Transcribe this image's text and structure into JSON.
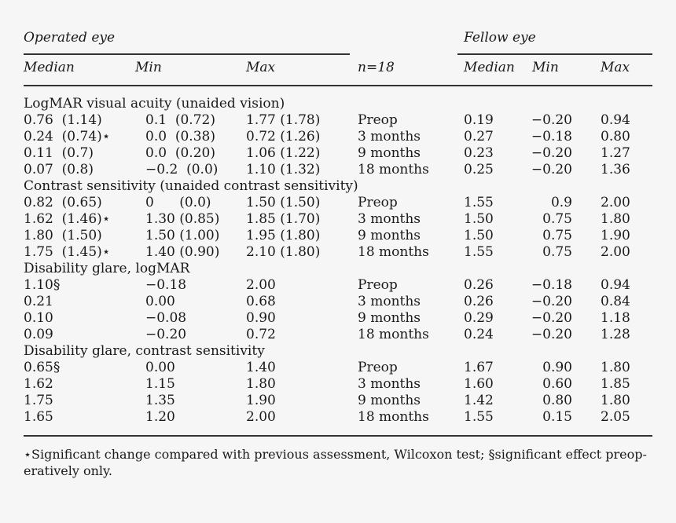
{
  "header": {
    "operated_eye": "Operated eye",
    "fellow_eye": "Fellow eye",
    "median": "Median",
    "min": "Min",
    "max": "Max",
    "n": "n=18"
  },
  "sections": [
    {
      "title": "LogMAR visual acuity (unaided vision)",
      "rows": [
        {
          "op_med": "0.76  (1.14)",
          "op_min": "0.1  (0.72)",
          "op_max": "1.77 (1.78)",
          "time": "Preop",
          "fe_med": "0.19",
          "fe_min": "−0.20",
          "fe_max": "0.94"
        },
        {
          "op_med": "0.24  (0.74)⋆",
          "op_min": "0.0  (0.38)",
          "op_max": "0.72 (1.26)",
          "time": "3 months",
          "fe_med": "0.27",
          "fe_min": "−0.18",
          "fe_max": "0.80"
        },
        {
          "op_med": "0.11  (0.7)",
          "op_min": "0.0  (0.20)",
          "op_max": "1.06 (1.22)",
          "time": "9 months",
          "fe_med": "0.23",
          "fe_min": "−0.20",
          "fe_max": "1.27"
        },
        {
          "op_med": "0.07  (0.8)",
          "op_min": "−0.2  (0.0)",
          "op_max": "1.10 (1.32)",
          "time": "18 months",
          "fe_med": "0.25",
          "fe_min": "−0.20",
          "fe_max": "1.36"
        }
      ]
    },
    {
      "title": "Contrast sensitivity (unaided contrast sensitivity)",
      "rows": [
        {
          "op_med": "0.82  (0.65)",
          "op_min": "0      (0.0)",
          "op_max": "1.50 (1.50)",
          "time": "Preop",
          "fe_med": "1.55",
          "fe_min": "0.9",
          "fe_max": "2.00"
        },
        {
          "op_med": "1.62  (1.46)⋆",
          "op_min": "1.30 (0.85)",
          "op_max": "1.85 (1.70)",
          "time": "3 months",
          "fe_med": "1.50",
          "fe_min": "0.75",
          "fe_max": "1.80"
        },
        {
          "op_med": "1.80  (1.50)",
          "op_min": "1.50 (1.00)",
          "op_max": "1.95 (1.80)",
          "time": "9 months",
          "fe_med": "1.50",
          "fe_min": "0.75",
          "fe_max": "1.90"
        },
        {
          "op_med": "1.75  (1.45)⋆",
          "op_min": "1.40 (0.90)",
          "op_max": "2.10 (1.80)",
          "time": "18 months",
          "fe_med": "1.55",
          "fe_min": "0.75",
          "fe_max": "2.00"
        }
      ]
    },
    {
      "title": "Disability glare, logMAR",
      "rows": [
        {
          "op_med": "1.10§",
          "op_min": "−0.18",
          "op_max": "2.00",
          "time": "Preop",
          "fe_med": "0.26",
          "fe_min": "−0.18",
          "fe_max": "0.94"
        },
        {
          "op_med": "0.21",
          "op_min": "0.00",
          "op_max": "0.68",
          "time": "3 months",
          "fe_med": "0.26",
          "fe_min": "−0.20",
          "fe_max": "0.84"
        },
        {
          "op_med": "0.10",
          "op_min": "−0.08",
          "op_max": "0.90",
          "time": "9 months",
          "fe_med": "0.29",
          "fe_min": "−0.20",
          "fe_max": "1.18"
        },
        {
          "op_med": "0.09",
          "op_min": "−0.20",
          "op_max": "0.72",
          "time": "18 months",
          "fe_med": "0.24",
          "fe_min": "−0.20",
          "fe_max": "1.28"
        }
      ]
    },
    {
      "title": "Disability glare, contrast sensitivity",
      "rows": [
        {
          "op_med": "0.65§",
          "op_min": "0.00",
          "op_max": "1.40",
          "time": "Preop",
          "fe_med": "1.67",
          "fe_min": "0.90",
          "fe_max": "1.80"
        },
        {
          "op_med": "1.62",
          "op_min": "1.15",
          "op_max": "1.80",
          "time": "3 months",
          "fe_med": "1.60",
          "fe_min": "0.60",
          "fe_max": "1.85"
        },
        {
          "op_med": "1.75",
          "op_min": "1.35",
          "op_max": "1.90",
          "time": "9 months",
          "fe_med": "1.42",
          "fe_min": "0.80",
          "fe_max": "1.80"
        },
        {
          "op_med": "1.65",
          "op_min": "1.20",
          "op_max": "2.00",
          "time": "18 months",
          "fe_med": "1.55",
          "fe_min": "0.15",
          "fe_max": "2.05"
        }
      ]
    }
  ],
  "footnote": "⋆Significant change compared with previous assessment, Wilcoxon test; §significant effect preop-eratively only."
}
